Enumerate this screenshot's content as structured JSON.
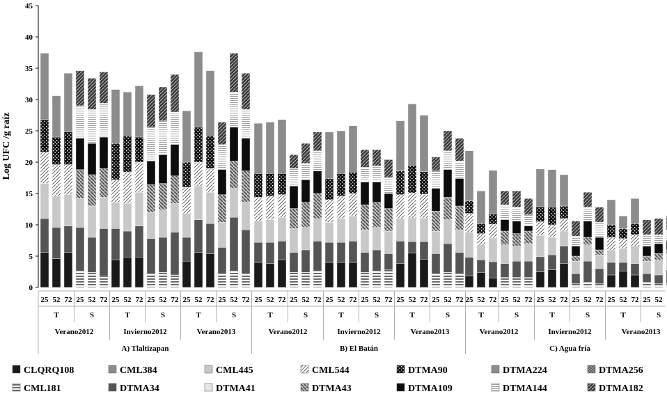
{
  "chart_data": {
    "type": "bar",
    "stacked": true,
    "ylabel": "Log UFC /g raíz",
    "ylim": [
      0,
      45
    ],
    "yticks": [
      0,
      5,
      10,
      15,
      20,
      25,
      30,
      35,
      40,
      45
    ],
    "grid": false,
    "legend_position": "bottom",
    "categories": [
      {
        "site": "A) Tlaltizapan",
        "season": "Verano2012",
        "treat": "T",
        "day": "25"
      },
      {
        "site": "A) Tlaltizapan",
        "season": "Verano2012",
        "treat": "T",
        "day": "52"
      },
      {
        "site": "A) Tlaltizapan",
        "season": "Verano2012",
        "treat": "T",
        "day": "72"
      },
      {
        "site": "A) Tlaltizapan",
        "season": "Verano2012",
        "treat": "S",
        "day": "25"
      },
      {
        "site": "A) Tlaltizapan",
        "season": "Verano2012",
        "treat": "S",
        "day": "52"
      },
      {
        "site": "A) Tlaltizapan",
        "season": "Verano2012",
        "treat": "S",
        "day": "72"
      },
      {
        "site": "A) Tlaltizapan",
        "season": "Invierno2012",
        "treat": "T",
        "day": "25"
      },
      {
        "site": "A) Tlaltizapan",
        "season": "Invierno2012",
        "treat": "T",
        "day": "52"
      },
      {
        "site": "A) Tlaltizapan",
        "season": "Invierno2012",
        "treat": "T",
        "day": "72"
      },
      {
        "site": "A) Tlaltizapan",
        "season": "Invierno2012",
        "treat": "S",
        "day": "25"
      },
      {
        "site": "A) Tlaltizapan",
        "season": "Invierno2012",
        "treat": "S",
        "day": "52"
      },
      {
        "site": "A) Tlaltizapan",
        "season": "Invierno2012",
        "treat": "S",
        "day": "72"
      },
      {
        "site": "A) Tlaltizapan",
        "season": "Verano2013",
        "treat": "T",
        "day": "25"
      },
      {
        "site": "A) Tlaltizapan",
        "season": "Verano2013",
        "treat": "T",
        "day": "52"
      },
      {
        "site": "A) Tlaltizapan",
        "season": "Verano2013",
        "treat": "T",
        "day": "72"
      },
      {
        "site": "A) Tlaltizapan",
        "season": "Verano2013",
        "treat": "S",
        "day": "25"
      },
      {
        "site": "A) Tlaltizapan",
        "season": "Verano2013",
        "treat": "S",
        "day": "52"
      },
      {
        "site": "A) Tlaltizapan",
        "season": "Verano2013",
        "treat": "S",
        "day": "72"
      },
      {
        "site": "B) El Batán",
        "season": "Verano2012",
        "treat": "T",
        "day": "25"
      },
      {
        "site": "B) El Batán",
        "season": "Verano2012",
        "treat": "T",
        "day": "52"
      },
      {
        "site": "B) El Batán",
        "season": "Verano2012",
        "treat": "T",
        "day": "72"
      },
      {
        "site": "B) El Batán",
        "season": "Verano2012",
        "treat": "S",
        "day": "25"
      },
      {
        "site": "B) El Batán",
        "season": "Verano2012",
        "treat": "S",
        "day": "52"
      },
      {
        "site": "B) El Batán",
        "season": "Verano2012",
        "treat": "S",
        "day": "72"
      },
      {
        "site": "B) El Batán",
        "season": "Invierno2012",
        "treat": "T",
        "day": "25"
      },
      {
        "site": "B) El Batán",
        "season": "Invierno2012",
        "treat": "T",
        "day": "52"
      },
      {
        "site": "B) El Batán",
        "season": "Invierno2012",
        "treat": "T",
        "day": "72"
      },
      {
        "site": "B) El Batán",
        "season": "Invierno2012",
        "treat": "S",
        "day": "25"
      },
      {
        "site": "B) El Batán",
        "season": "Invierno2012",
        "treat": "S",
        "day": "52"
      },
      {
        "site": "B) El Batán",
        "season": "Invierno2012",
        "treat": "S",
        "day": "72"
      },
      {
        "site": "B) El Batán",
        "season": "Verano2013",
        "treat": "T",
        "day": "25"
      },
      {
        "site": "B) El Batán",
        "season": "Verano2013",
        "treat": "T",
        "day": "52"
      },
      {
        "site": "B) El Batán",
        "season": "Verano2013",
        "treat": "T",
        "day": "72"
      },
      {
        "site": "B) El Batán",
        "season": "Verano2013",
        "treat": "S",
        "day": "25"
      },
      {
        "site": "B) El Batán",
        "season": "Verano2013",
        "treat": "S",
        "day": "52"
      },
      {
        "site": "B) El Batán",
        "season": "Verano2013",
        "treat": "S",
        "day": "72"
      },
      {
        "site": "C) Agua fría",
        "season": "Verano2012",
        "treat": "T",
        "day": "25"
      },
      {
        "site": "C) Agua fría",
        "season": "Verano2012",
        "treat": "T",
        "day": "52"
      },
      {
        "site": "C) Agua fría",
        "season": "Verano2012",
        "treat": "T",
        "day": "72"
      },
      {
        "site": "C) Agua fría",
        "season": "Verano2012",
        "treat": "S",
        "day": "25"
      },
      {
        "site": "C) Agua fría",
        "season": "Verano2012",
        "treat": "S",
        "day": "52"
      },
      {
        "site": "C) Agua fría",
        "season": "Verano2012",
        "treat": "S",
        "day": "72"
      },
      {
        "site": "C) Agua fría",
        "season": "Invierno2012",
        "treat": "T",
        "day": "25"
      },
      {
        "site": "C) Agua fría",
        "season": "Invierno2012",
        "treat": "T",
        "day": "52"
      },
      {
        "site": "C) Agua fría",
        "season": "Invierno2012",
        "treat": "T",
        "day": "72"
      },
      {
        "site": "C) Agua fría",
        "season": "Invierno2012",
        "treat": "S",
        "day": "25"
      },
      {
        "site": "C) Agua fría",
        "season": "Invierno2012",
        "treat": "S",
        "day": "52"
      },
      {
        "site": "C) Agua fría",
        "season": "Invierno2012",
        "treat": "S",
        "day": "72"
      },
      {
        "site": "C) Agua fría",
        "season": "Verano2013",
        "treat": "T",
        "day": "25"
      },
      {
        "site": "C) Agua fría",
        "season": "Verano2013",
        "treat": "T",
        "day": "52"
      },
      {
        "site": "C) Agua fría",
        "season": "Verano2013",
        "treat": "T",
        "day": "72"
      },
      {
        "site": "C) Agua fría",
        "season": "Verano2013",
        "treat": "S",
        "day": "25"
      },
      {
        "site": "C) Agua fría",
        "season": "Verano2013",
        "treat": "S",
        "day": "52"
      },
      {
        "site": "C) Agua fría",
        "season": "Verano2013",
        "treat": "S",
        "day": "72"
      }
    ],
    "series": [
      {
        "name": "CLQRQ108",
        "values": [
          5.6,
          4.6,
          5.6,
          0,
          0,
          0,
          4.4,
          4.8,
          4.8,
          0,
          0,
          0,
          4.2,
          5.6,
          5.4,
          0,
          0,
          0,
          4.0,
          3.8,
          4.4,
          0,
          0,
          0,
          4.0,
          4.0,
          4.0,
          0,
          0,
          0,
          3.8,
          5.5,
          4.5,
          0,
          0,
          0,
          1.8,
          2.4,
          1.5,
          0,
          0,
          0,
          2.5,
          2.8,
          3.8,
          0,
          0,
          0,
          2.0,
          2.6,
          2.0,
          0,
          0,
          0
        ]
      },
      {
        "name": "CML181",
        "values": [
          0,
          0,
          0,
          2.6,
          2.4,
          1.8,
          0,
          0,
          0,
          2.2,
          2.4,
          2.0,
          0,
          0,
          0,
          2.2,
          2.6,
          2.2,
          0,
          0,
          0,
          2.4,
          2.4,
          2.6,
          0,
          0,
          0,
          2.4,
          2.6,
          2.8,
          0,
          0,
          0,
          2.2,
          2.4,
          2.2,
          0,
          0,
          0,
          1.6,
          1.6,
          1.6,
          0,
          0,
          0,
          0.6,
          0.8,
          0.6,
          0,
          0,
          0,
          0.8,
          0.6,
          0.6
        ]
      },
      {
        "name": "CML384",
        "values": [
          0,
          0,
          0,
          0,
          0,
          0,
          0,
          0,
          0,
          0,
          0,
          0,
          0,
          0,
          0,
          0,
          0,
          0,
          0,
          0,
          0,
          0,
          0,
          0,
          0,
          0,
          0,
          0,
          0,
          0,
          0,
          0,
          0,
          0,
          0,
          0,
          0,
          0,
          0,
          0,
          0,
          0,
          0,
          0,
          0,
          0,
          0,
          0,
          0,
          0,
          0,
          0,
          0,
          0
        ]
      },
      {
        "name": "DTMA34",
        "values": [
          5.4,
          5.0,
          4.2,
          7.0,
          5.6,
          7.6,
          5.0,
          4.2,
          5.0,
          5.6,
          5.6,
          6.8,
          3.8,
          5.2,
          4.8,
          4.2,
          8.6,
          7.0,
          3.2,
          3.4,
          3.0,
          3.2,
          3.6,
          4.8,
          3.2,
          3.2,
          3.4,
          3.2,
          3.4,
          2.6,
          3.6,
          1.8,
          2.8,
          3.2,
          4.6,
          3.4,
          3.0,
          2.0,
          2.6,
          2.2,
          2.6,
          2.6,
          2.4,
          2.4,
          2.8,
          1.6,
          3.4,
          2.4,
          2.0,
          1.4,
          1.8,
          1.4,
          1.4,
          2.2
        ]
      },
      {
        "name": "CML445",
        "values": [
          5.6,
          5.0,
          5.0,
          4.6,
          5.0,
          5.0,
          4.2,
          4.4,
          5.4,
          4.2,
          4.4,
          4.6,
          3.8,
          5.4,
          5.0,
          4.0,
          4.6,
          4.4,
          3.4,
          3.6,
          3.8,
          3.8,
          3.6,
          3.6,
          3.2,
          3.8,
          4.0,
          3.6,
          3.6,
          3.6,
          3.6,
          3.8,
          3.8,
          3.6,
          3.8,
          3.6,
          4.0,
          2.4,
          3.8,
          3.0,
          2.4,
          2.8,
          3.4,
          2.8,
          2.4,
          2.0,
          2.6,
          2.2,
          2.0,
          2.2,
          2.8,
          2.0,
          2.4,
          2.4
        ]
      },
      {
        "name": "DTMA41",
        "values": [
          0,
          0,
          0,
          0,
          0,
          0,
          0,
          0,
          0,
          0,
          0,
          0,
          0,
          0,
          0,
          0,
          0,
          0,
          0,
          0,
          0,
          0,
          0,
          0,
          0,
          0,
          0,
          0,
          0,
          0,
          0,
          0,
          0,
          0,
          0,
          0,
          0,
          0,
          0,
          0,
          0,
          0,
          0,
          0,
          0,
          0,
          0,
          0,
          0,
          0,
          0,
          0,
          0,
          0
        ]
      },
      {
        "name": "CML544",
        "values": [
          5.0,
          5.0,
          4.8,
          0,
          0,
          0,
          3.6,
          5.0,
          4.8,
          0,
          0,
          0,
          4.2,
          3.8,
          3.8,
          0,
          0,
          0,
          3.8,
          3.8,
          3.6,
          0,
          0,
          0,
          3.6,
          3.6,
          3.6,
          0,
          0,
          0,
          3.8,
          4.0,
          3.8,
          0,
          0,
          0,
          3.0,
          1.8,
          2.2,
          0,
          0,
          0,
          2.2,
          2.0,
          2.0,
          0,
          0,
          0,
          2.0,
          1.6,
          1.8,
          0,
          0,
          0
        ]
      },
      {
        "name": "DTMA43",
        "values": [
          0,
          0,
          0,
          4.6,
          5.0,
          4.6,
          0,
          0,
          0,
          4.4,
          4.2,
          4.4,
          0,
          0,
          0,
          4.4,
          4.4,
          5.0,
          0,
          0,
          0,
          3.2,
          4.0,
          4.0,
          0,
          0,
          0,
          4.0,
          4.0,
          3.6,
          0,
          0,
          0,
          3.2,
          3.6,
          3.8,
          0,
          0,
          0,
          2.2,
          2.0,
          2.0,
          0,
          0,
          0,
          0.8,
          1.2,
          0.8,
          0,
          0,
          0,
          0.8,
          1.0,
          0.8
        ]
      },
      {
        "name": "DTMA90",
        "values": [
          5.2,
          4.4,
          5.2,
          0,
          0,
          0,
          5.8,
          5.8,
          4.0,
          0,
          0,
          0,
          4.0,
          5.6,
          5.2,
          0,
          0,
          0,
          3.8,
          3.6,
          3.4,
          0,
          0,
          0,
          3.4,
          3.6,
          3.4,
          0,
          0,
          0,
          3.8,
          4.4,
          3.6,
          0,
          0,
          0,
          2.0,
          1.6,
          1.6,
          0,
          0,
          0,
          2.4,
          2.8,
          2.0,
          0,
          0,
          0,
          2.0,
          1.6,
          1.8,
          0,
          0,
          0
        ]
      },
      {
        "name": "DTMA109",
        "values": [
          0,
          0,
          0,
          5.0,
          5.0,
          5.0,
          0,
          0,
          0,
          3.8,
          4.6,
          5.0,
          0,
          0,
          0,
          4.0,
          5.4,
          5.2,
          0,
          0,
          0,
          3.6,
          3.6,
          3.6,
          0,
          0,
          0,
          3.6,
          3.2,
          2.4,
          0,
          0,
          0,
          3.6,
          4.4,
          4.4,
          0,
          0,
          0,
          1.8,
          2.0,
          0.8,
          0,
          0,
          0,
          1.6,
          2.6,
          2.0,
          0,
          0,
          0,
          1.6,
          1.6,
          1.4
        ]
      },
      {
        "name": "DTMA224",
        "values": [
          10.6,
          6.6,
          9.4,
          0,
          0,
          0,
          8.6,
          7.0,
          8.2,
          0,
          0,
          0,
          8.2,
          12.0,
          10.4,
          0,
          0,
          0,
          8.0,
          8.2,
          8.6,
          0,
          0,
          0,
          7.4,
          6.8,
          7.4,
          0,
          0,
          0,
          8.0,
          9.8,
          9.0,
          0,
          0,
          0,
          8.0,
          5.2,
          7.0,
          0,
          0,
          0,
          6.0,
          6.0,
          5.0,
          0,
          0,
          0,
          4.0,
          2.0,
          4.0,
          0,
          0,
          0
        ]
      },
      {
        "name": "DTMA144",
        "values": [
          0,
          0,
          0,
          5.2,
          5.4,
          5.4,
          0,
          0,
          0,
          5.4,
          5.4,
          5.2,
          0,
          0,
          0,
          4.0,
          5.6,
          4.6,
          0,
          0,
          0,
          2.8,
          2.6,
          3.2,
          0,
          0,
          0,
          2.4,
          2.6,
          2.6,
          0,
          0,
          0,
          2.8,
          3.0,
          2.8,
          0,
          0,
          0,
          2.4,
          2.2,
          1.8,
          0,
          0,
          0,
          1.6,
          2.2,
          2.4,
          0,
          0,
          0,
          1.8,
          1.4,
          1.8
        ]
      },
      {
        "name": "DTMA256",
        "values": [
          0,
          0,
          0,
          0,
          0,
          0,
          0,
          0,
          0,
          0,
          0,
          0,
          0,
          0,
          0,
          0,
          0,
          0,
          0,
          0,
          0,
          0,
          0,
          0,
          0,
          0,
          0,
          0,
          0,
          0,
          0,
          0,
          0,
          0,
          0,
          0,
          0,
          0,
          0,
          0,
          0,
          0,
          0,
          0,
          0,
          0,
          0,
          0,
          0,
          0,
          0,
          0,
          0,
          0
        ]
      },
      {
        "name": "DTMA182",
        "values": [
          0,
          0,
          0,
          5.6,
          5.0,
          5.0,
          0,
          0,
          0,
          5.2,
          5.4,
          6.0,
          0,
          0,
          0,
          3.6,
          6.2,
          5.8,
          0,
          0,
          0,
          2.2,
          3.2,
          3.0,
          0,
          0,
          0,
          2.8,
          2.6,
          2.8,
          0,
          0,
          0,
          2.2,
          3.2,
          3.6,
          0,
          0,
          0,
          2.2,
          2.6,
          2.6,
          0,
          0,
          0,
          2.4,
          2.4,
          2.4,
          0,
          0,
          0,
          2.4,
          2.6,
          2.2
        ]
      }
    ],
    "colors": {
      "CLQRQ108": "#1a1a1a",
      "CML181": "#6a6a6a",
      "CML384": "#8c8c8c",
      "DTMA34": "#555555",
      "CML445": "#c8c8c8",
      "DTMA41": "#e6e6e6",
      "CML544": "#ffffff",
      "DTMA43": "#7a7a7a",
      "DTMA90": "#111111",
      "DTMA109": "#0d0d0d",
      "DTMA224": "#8c8c8c",
      "DTMA144": "#ffffff",
      "DTMA256": "#7c7c7c",
      "DTMA182": "#3c3c3c"
    },
    "legend_order": [
      "CLQRQ108",
      "CML384",
      "CML445",
      "CML544",
      "DTMA90",
      "DTMA224",
      "DTMA256",
      "CML181",
      "DTMA34",
      "DTMA41",
      "DTMA43",
      "DTMA109",
      "DTMA144",
      "DTMA182"
    ]
  }
}
